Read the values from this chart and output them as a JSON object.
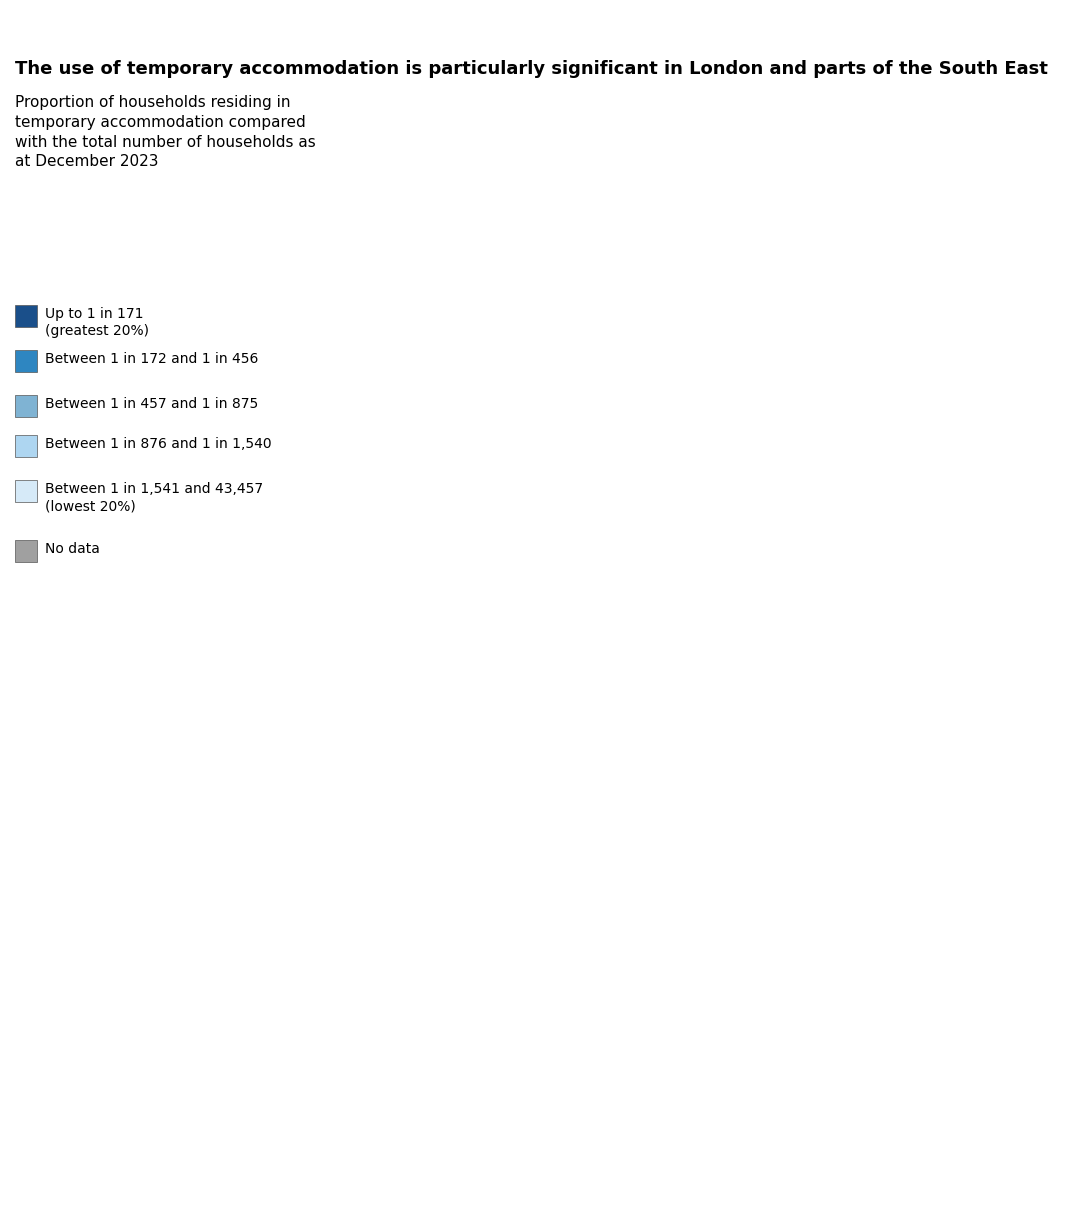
{
  "title": "The use of temporary accommodation is particularly significant in London and parts of the South East",
  "subtitle": "Proportion of households residing in\ntemporary accommodation compared\nwith the total number of households as\nat December 2023",
  "legend_items": [
    {
      "label": "Up to 1 in 171\n(greatest 20%)",
      "color": "#1a4f8a"
    },
    {
      "label": "Between 1 in 172 and 1 in 456",
      "color": "#2e86c1"
    },
    {
      "label": "Between 1 in 457 and 1 in 875",
      "color": "#7fb3d3"
    },
    {
      "label": "Between 1 in 876 and 1 in 1,540",
      "color": "#aed6f1"
    },
    {
      "label": "Between 1 in 1,541 and 43,457\n(lowest 20%)",
      "color": "#d6eaf8"
    },
    {
      "label": "No data",
      "color": "#a0a0a0"
    }
  ],
  "colors": {
    "darkest_blue": "#1a4f8a",
    "dark_blue": "#2e86c1",
    "medium_blue": "#7fb3d3",
    "light_blue": "#aed6f1",
    "lightest_blue": "#d6eaf8",
    "grey": "#a0a0a0",
    "wales_grey": "#d0d0d0",
    "background": "#ffffff",
    "border": "#1a4f8a",
    "line_color": "#333333"
  },
  "title_fontsize": 13,
  "subtitle_fontsize": 11,
  "legend_fontsize": 10,
  "black_bar_height": 30
}
